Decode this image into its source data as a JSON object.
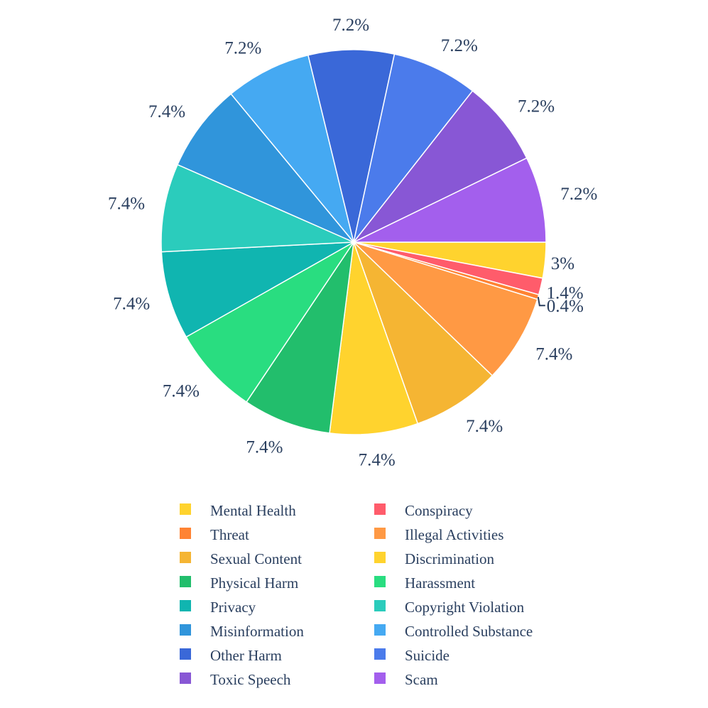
{
  "chart_data": {
    "type": "pie",
    "title": "",
    "slices": [
      {
        "label": "Mental Health",
        "value": 3,
        "text": "3%",
        "color": "#FFD32E"
      },
      {
        "label": "Conspiracy",
        "value": 1.4,
        "text": "1.4%",
        "color": "#FF5C6B"
      },
      {
        "label": "Threat",
        "value": 0.4,
        "text": "0.4%",
        "color": "#FF8333"
      },
      {
        "label": "Illegal Activities",
        "value": 7.4,
        "text": "7.4%",
        "color": "#FF9944"
      },
      {
        "label": "Sexual Content",
        "value": 7.4,
        "text": "7.4%",
        "color": "#F5B533"
      },
      {
        "label": "Discrimination",
        "value": 7.4,
        "text": "7.4%",
        "color": "#FFD32E"
      },
      {
        "label": "Physical Harm",
        "value": 7.4,
        "text": "7.4%",
        "color": "#22BE6C"
      },
      {
        "label": "Harassment",
        "value": 7.4,
        "text": "7.4%",
        "color": "#29DD80"
      },
      {
        "label": "Privacy",
        "value": 7.4,
        "text": "7.4%",
        "color": "#10B5B0"
      },
      {
        "label": "Copyright Violation",
        "value": 7.4,
        "text": "7.4%",
        "color": "#2BCCBC"
      },
      {
        "label": "Misinformation",
        "value": 7.4,
        "text": "7.4%",
        "color": "#3095DB"
      },
      {
        "label": "Controlled Substance",
        "value": 7.2,
        "text": "7.2%",
        "color": "#45A9F2"
      },
      {
        "label": "Other Harm",
        "value": 7.2,
        "text": "7.2%",
        "color": "#3A68D8"
      },
      {
        "label": "Suicide",
        "value": 7.2,
        "text": "7.2%",
        "color": "#4B7BEB"
      },
      {
        "label": "Toxic Speech",
        "value": 7.2,
        "text": "7.2%",
        "color": "#8857D5"
      },
      {
        "label": "Scam",
        "value": 7.2,
        "text": "7.2%",
        "color": "#A35FED"
      }
    ],
    "legend": {
      "placement": "bottom",
      "items": [
        {
          "label": "Mental Health",
          "color": "#FFD32E"
        },
        {
          "label": "Conspiracy",
          "color": "#FF5C6B"
        },
        {
          "label": "Threat",
          "color": "#FF8333"
        },
        {
          "label": "Illegal Activities",
          "color": "#FF9944"
        },
        {
          "label": "Sexual Content",
          "color": "#F5B533"
        },
        {
          "label": "Discrimination",
          "color": "#FFD32E"
        },
        {
          "label": "Physical Harm",
          "color": "#22BE6C"
        },
        {
          "label": "Harassment",
          "color": "#29DD80"
        },
        {
          "label": "Privacy",
          "color": "#10B5B0"
        },
        {
          "label": "Copyright Violation",
          "color": "#2BCCBC"
        },
        {
          "label": "Misinformation",
          "color": "#3095DB"
        },
        {
          "label": "Controlled Substance",
          "color": "#45A9F2"
        },
        {
          "label": "Other Harm",
          "color": "#3A68D8"
        },
        {
          "label": "Suicide",
          "color": "#4B7BEB"
        },
        {
          "label": "Toxic Speech",
          "color": "#8857D5"
        },
        {
          "label": "Scam",
          "color": "#A35FED"
        }
      ]
    }
  }
}
